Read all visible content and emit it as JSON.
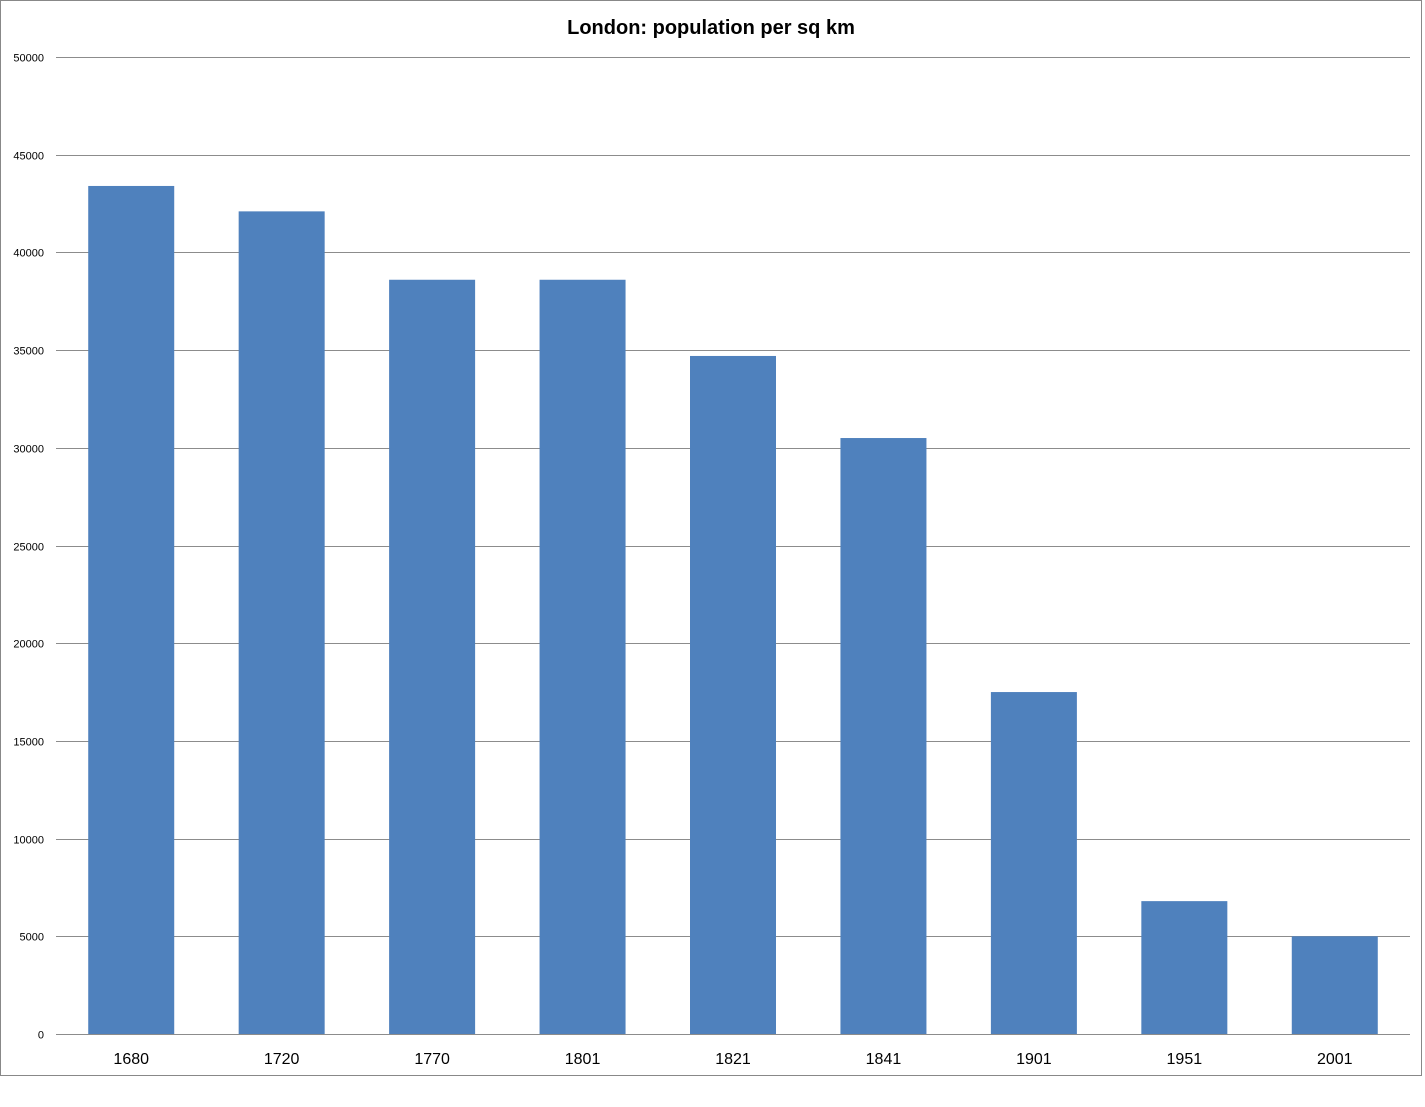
{
  "chart_data": {
    "type": "bar",
    "title": "London: population per sq km",
    "xlabel": "",
    "ylabel": "",
    "categories": [
      "1680",
      "1720",
      "1770",
      "1801",
      "1821",
      "1841",
      "1901",
      "1951",
      "2001"
    ],
    "values": [
      43400,
      42100,
      38600,
      38600,
      34700,
      30500,
      17500,
      6800,
      5000
    ],
    "ylim": [
      0,
      50000
    ],
    "yticks": [
      0,
      5000,
      10000,
      15000,
      20000,
      25000,
      30000,
      35000,
      40000,
      45000,
      50000
    ],
    "grid": true,
    "legend": "none",
    "bar_color": "#4f81bd"
  }
}
